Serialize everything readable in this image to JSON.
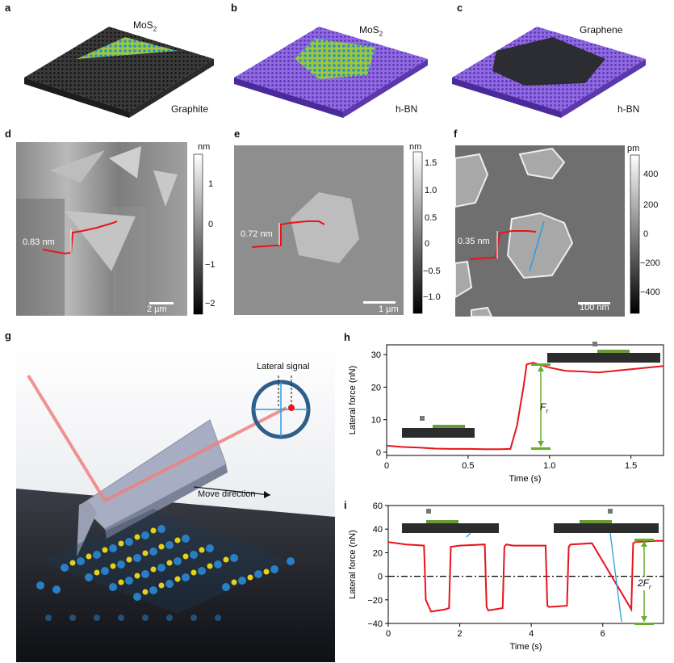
{
  "panels": {
    "a": {
      "letter": "a",
      "top_label": "MoS",
      "top_sub": "2",
      "bottom_label": "Graphite"
    },
    "b": {
      "letter": "b",
      "top_label": "MoS",
      "top_sub": "2",
      "bottom_label": "h-BN"
    },
    "c": {
      "letter": "c",
      "top_label": "Graphene",
      "bottom_label": "h-BN"
    },
    "d": {
      "letter": "d",
      "unit": "nm",
      "ticks": [
        "1",
        "0",
        "−1",
        "−2"
      ],
      "step": "0.83 nm",
      "scalebar": "2 µm"
    },
    "e": {
      "letter": "e",
      "unit": "nm",
      "ticks": [
        "1.5",
        "1.0",
        "0.5",
        "0",
        "−0.5",
        "−1.0"
      ],
      "step": "0.72 nm",
      "scalebar": "1 µm"
    },
    "f": {
      "letter": "f",
      "unit": "pm",
      "ticks": [
        "400",
        "200",
        "0",
        "−200",
        "−400"
      ],
      "step": "0.35 nm",
      "scalebar": "100 nm"
    },
    "g": {
      "letter": "g",
      "lateral_signal": "Lateral signal",
      "move_direction": "Move direction"
    },
    "h": {
      "letter": "h",
      "annotation": "F",
      "annotation_sub": "r"
    },
    "i": {
      "letter": "i",
      "annotation": "2F",
      "annotation_sub": "r"
    }
  },
  "colors": {
    "trace": "#e8141c",
    "arrow_green": "#6aab2e",
    "hbn": "#7a4fd0",
    "graphite": "#2b2b2b",
    "laser": "#f08080"
  },
  "chart_data": [
    {
      "panel": "h",
      "type": "line",
      "xlabel": "Time (s)",
      "ylabel": "Lateral force (nN)",
      "xlim": [
        0,
        1.7
      ],
      "ylim": [
        -1,
        33
      ],
      "xticks": [
        "0",
        "0.5",
        "1.0",
        "1.5"
      ],
      "yticks": [
        "0",
        "10",
        "20",
        "30"
      ],
      "x": [
        0,
        0.1,
        0.2,
        0.3,
        0.4,
        0.5,
        0.6,
        0.7,
        0.76,
        0.8,
        0.84,
        0.86,
        0.9,
        1.0,
        1.1,
        1.2,
        1.3,
        1.4,
        1.5,
        1.6,
        1.7
      ],
      "y": [
        2,
        1.6,
        1.4,
        1.1,
        1.0,
        1.0,
        0.9,
        0.9,
        1.0,
        8,
        20,
        27,
        27.5,
        26,
        25,
        24.8,
        24.5,
        25,
        25.5,
        26,
        26.5
      ]
    },
    {
      "panel": "i",
      "type": "line",
      "xlabel": "Time (s)",
      "ylabel": "Lateral force (nN)",
      "xlim": [
        0,
        7.7
      ],
      "ylim": [
        -40,
        60
      ],
      "xticks": [
        "0",
        "2",
        "4",
        "6"
      ],
      "yticks": [
        "60",
        "40",
        "20",
        "0",
        "−20",
        "−40"
      ],
      "x": [
        0,
        0.5,
        1.0,
        1.05,
        1.2,
        1.6,
        1.7,
        1.75,
        2.0,
        2.7,
        2.75,
        2.8,
        3.2,
        3.25,
        3.3,
        3.5,
        4.4,
        4.45,
        4.5,
        5.0,
        5.05,
        5.1,
        5.7,
        6.8,
        6.85,
        6.9,
        7.5,
        7.7
      ],
      "y": [
        29,
        27,
        26,
        -20,
        -30,
        -28,
        -27,
        25,
        26,
        27,
        -26,
        -29,
        -27,
        25,
        27,
        26,
        26,
        -25,
        -26,
        -25,
        25,
        27,
        28,
        -28,
        28,
        29,
        30,
        30
      ]
    }
  ]
}
